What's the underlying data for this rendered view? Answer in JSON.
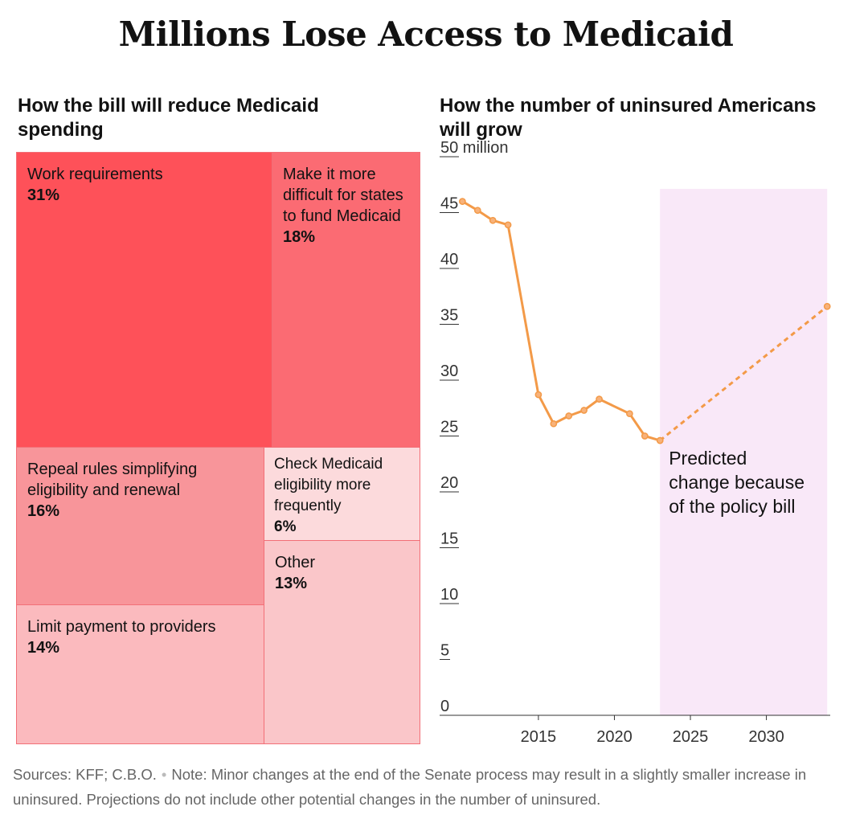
{
  "title": "Millions Lose Access to Medicaid",
  "left_panel": {
    "heading": "How the bill will reduce Medicaid spending"
  },
  "right_panel": {
    "heading": "How the number of uninsured Americans will grow"
  },
  "colors": {
    "line": "#f39a48",
    "prediction_band": "#f9e8f8",
    "treemap_border": "#f26f77"
  },
  "chart_data": [
    {
      "type": "treemap",
      "title": "How the bill will reduce Medicaid spending",
      "items": [
        {
          "label": "Work requirements",
          "value": "31%",
          "share": 31,
          "color": "#fe5159"
        },
        {
          "label": "Make it more difficult for states to fund Medicaid",
          "value": "18%",
          "share": 18,
          "color": "#fb6b73"
        },
        {
          "label": "Repeal rules simplifying eligibility and renewal",
          "value": "16%",
          "share": 16,
          "color": "#f8959a"
        },
        {
          "label": "Check Medicaid eligibility more frequently",
          "value": "6%",
          "share": 6,
          "color": "#fcdadc"
        },
        {
          "label": "Other",
          "value": "13%",
          "share": 13,
          "color": "#fac6c9"
        },
        {
          "label": "Limit payment to providers",
          "value": "14%",
          "share": 14,
          "color": "#fbbabe"
        }
      ]
    },
    {
      "type": "line",
      "title": "How the number of uninsured Americans will grow",
      "ylabel": "",
      "y_tick_labels": [
        "0",
        "5",
        "10",
        "15",
        "20",
        "25",
        "30",
        "35",
        "40",
        "45",
        "50 million"
      ],
      "y_ticks": [
        0,
        5,
        10,
        15,
        20,
        25,
        30,
        35,
        40,
        45,
        50
      ],
      "x_ticks": [
        2015,
        2020,
        2025,
        2030
      ],
      "x_tick_labels": [
        "2015",
        "2020",
        "2025",
        "2030"
      ],
      "xlim": [
        2008.5,
        2034.2
      ],
      "ylim": [
        0,
        50
      ],
      "grid": false,
      "series": [
        {
          "style": "solid",
          "x": [
            2010,
            2011,
            2012,
            2013,
            2015,
            2016,
            2017,
            2018,
            2019,
            2021,
            2022,
            2023
          ],
          "y": [
            46.0,
            45.2,
            44.3,
            43.9,
            28.7,
            26.1,
            26.8,
            27.3,
            28.3,
            27.0,
            25.0,
            24.6
          ]
        },
        {
          "style": "dashed",
          "x": [
            2023,
            2034
          ],
          "y": [
            24.6,
            36.6
          ]
        }
      ],
      "shaded_region": {
        "x": [
          2023,
          2034
        ]
      },
      "annotation": {
        "lines": [
          "Predicted",
          "change because",
          "of the policy bill"
        ]
      }
    }
  ],
  "footer": {
    "sources": "Sources: KFF; C.B.O.",
    "separator": "•",
    "note": "Note: Minor changes at the end of the Senate process may result in a slightly smaller increase in uninsured. Projections do not include other potential changes in the number of uninsured."
  }
}
